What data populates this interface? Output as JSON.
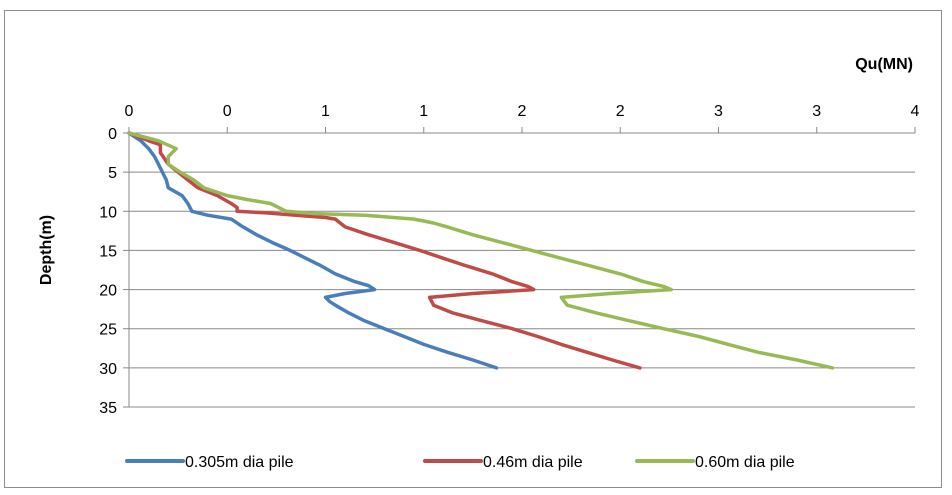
{
  "chart_data": {
    "type": "line",
    "xlabel": "Qu(MN)",
    "ylabel": "Depth(m)",
    "x_axis_position": "top",
    "y_axis_reversed": true,
    "xlim": [
      0,
      4
    ],
    "ylim": [
      0,
      35
    ],
    "x_tick_labels": [
      "0",
      "0",
      "1",
      "1",
      "2",
      "2",
      "3",
      "3",
      "4"
    ],
    "y_tick_labels": [
      "0",
      "5",
      "10",
      "15",
      "20",
      "25",
      "30",
      "35"
    ],
    "grid": "horizontal",
    "legend_position": "bottom",
    "series": [
      {
        "name": "0.305m dia pile",
        "color": "#4a7ebb",
        "points": [
          [
            0,
            0
          ],
          [
            0.06,
            1
          ],
          [
            0.1,
            2
          ],
          [
            0.13,
            3
          ],
          [
            0.15,
            4
          ],
          [
            0.17,
            5
          ],
          [
            0.19,
            6
          ],
          [
            0.2,
            7
          ],
          [
            0.27,
            8
          ],
          [
            0.3,
            9
          ],
          [
            0.32,
            10
          ],
          [
            0.4,
            10.5
          ],
          [
            0.52,
            11
          ],
          [
            0.58,
            12
          ],
          [
            0.65,
            13
          ],
          [
            0.73,
            14
          ],
          [
            0.82,
            15
          ],
          [
            0.9,
            16
          ],
          [
            0.98,
            17
          ],
          [
            1.05,
            18
          ],
          [
            1.15,
            19
          ],
          [
            1.22,
            19.5
          ],
          [
            1.25,
            20
          ],
          [
            1.1,
            20.5
          ],
          [
            1.0,
            21
          ],
          [
            1.02,
            21.5
          ],
          [
            1.05,
            22
          ],
          [
            1.12,
            23
          ],
          [
            1.2,
            24
          ],
          [
            1.3,
            25
          ],
          [
            1.4,
            26
          ],
          [
            1.5,
            27
          ],
          [
            1.62,
            28
          ],
          [
            1.75,
            29
          ],
          [
            1.87,
            30
          ]
        ]
      },
      {
        "name": "0.46m dia pile",
        "color": "#be4b48",
        "points": [
          [
            0,
            0
          ],
          [
            0.1,
            1
          ],
          [
            0.16,
            1.5
          ],
          [
            0.16,
            2.5
          ],
          [
            0.2,
            4
          ],
          [
            0.25,
            5
          ],
          [
            0.3,
            6
          ],
          [
            0.35,
            7
          ],
          [
            0.45,
            8
          ],
          [
            0.52,
            9
          ],
          [
            0.55,
            9.5
          ],
          [
            0.55,
            10
          ],
          [
            0.7,
            10.2
          ],
          [
            0.85,
            10.5
          ],
          [
            1.0,
            10.8
          ],
          [
            1.05,
            11
          ],
          [
            1.1,
            12
          ],
          [
            1.22,
            13
          ],
          [
            1.35,
            14
          ],
          [
            1.48,
            15
          ],
          [
            1.6,
            16
          ],
          [
            1.72,
            17
          ],
          [
            1.85,
            18
          ],
          [
            1.95,
            19
          ],
          [
            2.03,
            19.6
          ],
          [
            2.06,
            20
          ],
          [
            1.75,
            20.5
          ],
          [
            1.53,
            21
          ],
          [
            1.55,
            22
          ],
          [
            1.65,
            23
          ],
          [
            1.8,
            24
          ],
          [
            1.95,
            25
          ],
          [
            2.08,
            26
          ],
          [
            2.2,
            27
          ],
          [
            2.33,
            28
          ],
          [
            2.46,
            29
          ],
          [
            2.6,
            30
          ]
        ]
      },
      {
        "name": "0.60m dia pile",
        "color": "#98b954",
        "points": [
          [
            0,
            0
          ],
          [
            0.15,
            1
          ],
          [
            0.24,
            2
          ],
          [
            0.2,
            3
          ],
          [
            0.2,
            4
          ],
          [
            0.26,
            5
          ],
          [
            0.33,
            6
          ],
          [
            0.38,
            7
          ],
          [
            0.5,
            8
          ],
          [
            0.6,
            8.5
          ],
          [
            0.72,
            9
          ],
          [
            0.8,
            10
          ],
          [
            0.95,
            10.3
          ],
          [
            1.2,
            10.5
          ],
          [
            1.45,
            11
          ],
          [
            1.55,
            11.5
          ],
          [
            1.62,
            12
          ],
          [
            1.75,
            13
          ],
          [
            1.9,
            14
          ],
          [
            2.05,
            15
          ],
          [
            2.2,
            16
          ],
          [
            2.35,
            17
          ],
          [
            2.5,
            18
          ],
          [
            2.62,
            19
          ],
          [
            2.72,
            19.6
          ],
          [
            2.76,
            20
          ],
          [
            2.45,
            20.5
          ],
          [
            2.2,
            21
          ],
          [
            2.23,
            22
          ],
          [
            2.38,
            23
          ],
          [
            2.55,
            24
          ],
          [
            2.72,
            25
          ],
          [
            2.9,
            26
          ],
          [
            3.05,
            27
          ],
          [
            3.2,
            28
          ],
          [
            3.4,
            29
          ],
          [
            3.58,
            30
          ]
        ]
      }
    ]
  }
}
